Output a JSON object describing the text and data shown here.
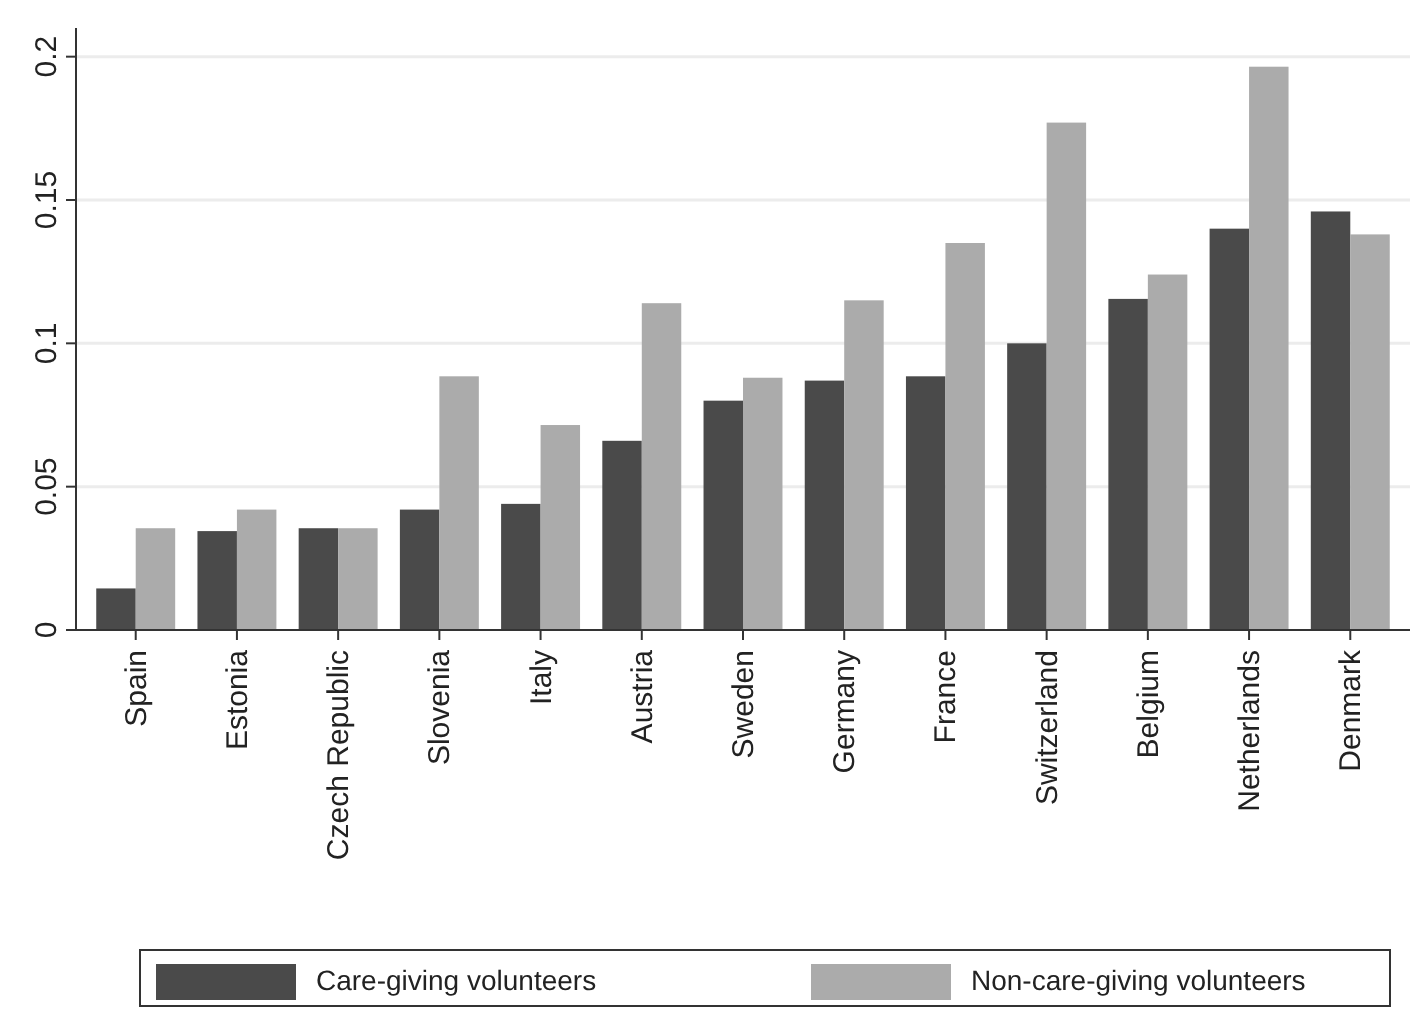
{
  "chart_data": {
    "type": "bar",
    "categories": [
      "Spain",
      "Estonia",
      "Czech Republic",
      "Slovenia",
      "Italy",
      "Austria",
      "Sweden",
      "Germany",
      "France",
      "Switzerland",
      "Belgium",
      "Netherlands",
      "Denmark"
    ],
    "series": [
      {
        "name": "Care-giving volunteers",
        "color": "#4a4a4a",
        "values": [
          0.0145,
          0.0345,
          0.0355,
          0.042,
          0.044,
          0.066,
          0.08,
          0.087,
          0.0885,
          0.1,
          0.1155,
          0.14,
          0.146
        ]
      },
      {
        "name": "Non-care-giving volunteers",
        "color": "#ababab",
        "values": [
          0.0355,
          0.042,
          0.0355,
          0.0885,
          0.0715,
          0.114,
          0.088,
          0.115,
          0.135,
          0.177,
          0.124,
          0.1965,
          0.138
        ]
      }
    ],
    "ylim": [
      0,
      0.21
    ],
    "yticks": [
      0,
      0.05,
      0.1,
      0.15,
      0.2
    ],
    "grid": "y",
    "legend": "bottom"
  }
}
